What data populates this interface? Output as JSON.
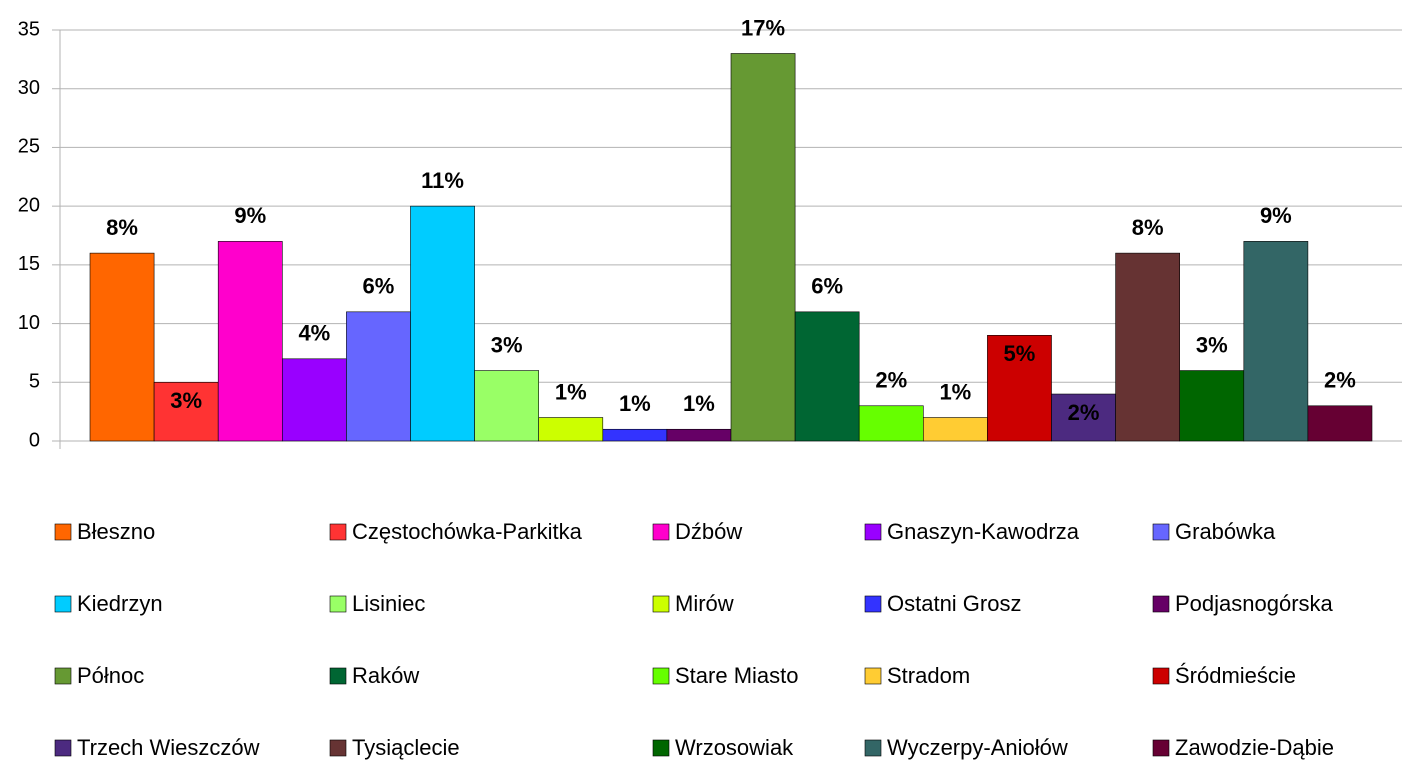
{
  "chart_data": {
    "type": "bar",
    "categories": [
      null
    ],
    "series": [
      {
        "name": "Błeszno",
        "color": "#ff6600",
        "values": [
          16
        ]
      },
      {
        "name": "Częstochówka-Parkitka",
        "color": "#ff3333",
        "values": [
          5
        ]
      },
      {
        "name": "Dźbów",
        "color": "#ff00cc",
        "values": [
          17
        ]
      },
      {
        "name": "Gnaszyn-Kawodrza",
        "color": "#9900ff",
        "values": [
          7
        ]
      },
      {
        "name": "Grabówka",
        "color": "#6666ff",
        "values": [
          11
        ]
      },
      {
        "name": "Kiedrzyn",
        "color": "#00ccff",
        "values": [
          20
        ]
      },
      {
        "name": "Lisiniec",
        "color": "#99ff66",
        "values": [
          6
        ]
      },
      {
        "name": "Mirów",
        "color": "#ccff00",
        "values": [
          2
        ]
      },
      {
        "name": "Ostatni Grosz",
        "color": "#3333ff",
        "values": [
          1
        ]
      },
      {
        "name": "Podjasnogórska",
        "color": "#660066",
        "values": [
          1
        ]
      },
      {
        "name": "Północ",
        "color": "#669933",
        "values": [
          33
        ]
      },
      {
        "name": "Raków",
        "color": "#006633",
        "values": [
          11
        ]
      },
      {
        "name": "Stare Miasto",
        "color": "#66ff00",
        "values": [
          3
        ]
      },
      {
        "name": "Stradom",
        "color": "#ffcc33",
        "values": [
          2
        ]
      },
      {
        "name": "Śródmieście",
        "color": "#cc0000",
        "values": [
          9
        ]
      },
      {
        "name": "Trzech Wieszczów",
        "color": "#4c2a80",
        "values": [
          4
        ]
      },
      {
        "name": "Tysiąclecie",
        "color": "#663333",
        "values": [
          16
        ]
      },
      {
        "name": "Wrzosowiak",
        "color": "#006600",
        "values": [
          6
        ]
      },
      {
        "name": "Wyczerpy-Aniołów",
        "color": "#336666",
        "values": [
          17
        ]
      },
      {
        "name": "Zawodzie-Dąbie",
        "color": "#660033",
        "values": [
          3
        ]
      }
    ],
    "data_labels": [
      "8%",
      "3%",
      "9%",
      "4%",
      "6%",
      "11%",
      "3%",
      "1%",
      "1%",
      "1%",
      "17%",
      "6%",
      "2%",
      "1%",
      "5%",
      "2%",
      "8%",
      "3%",
      "9%",
      "2%"
    ],
    "ylim": [
      0,
      35
    ],
    "yticks": [
      0,
      5,
      10,
      15,
      20,
      25,
      30,
      35
    ],
    "grid": true,
    "legend": "bottom"
  }
}
